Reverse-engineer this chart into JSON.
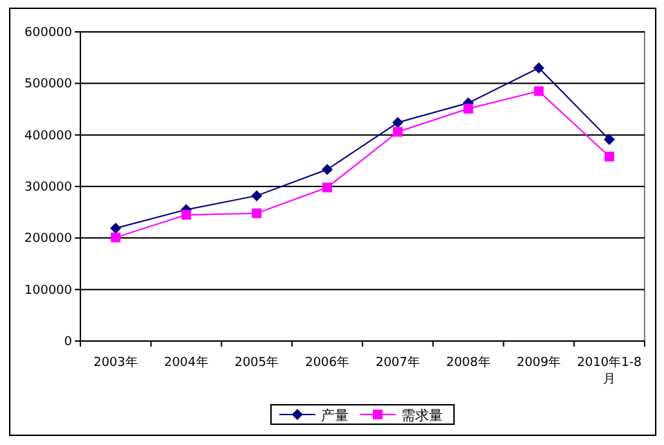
{
  "chart_data": {
    "type": "line",
    "categories": [
      "2003年",
      "2004年",
      "2005年",
      "2006年",
      "2007年",
      "2008年",
      "2009年",
      "2010年1-8月"
    ],
    "series": [
      {
        "name": "产量",
        "color": "#000080",
        "marker": "diamond",
        "values": [
          219000,
          255000,
          282000,
          333000,
          424000,
          462000,
          530000,
          391000
        ]
      },
      {
        "name": "需求量",
        "color": "#ff00ff",
        "marker": "square",
        "values": [
          201000,
          245000,
          248000,
          298000,
          406000,
          451000,
          485000,
          358000
        ]
      }
    ],
    "ylim": [
      0,
      600000
    ],
    "yticks": [
      0,
      100000,
      200000,
      300000,
      400000,
      500000,
      600000
    ],
    "grid": "y",
    "legend": "bottom",
    "line_style": "solid"
  }
}
